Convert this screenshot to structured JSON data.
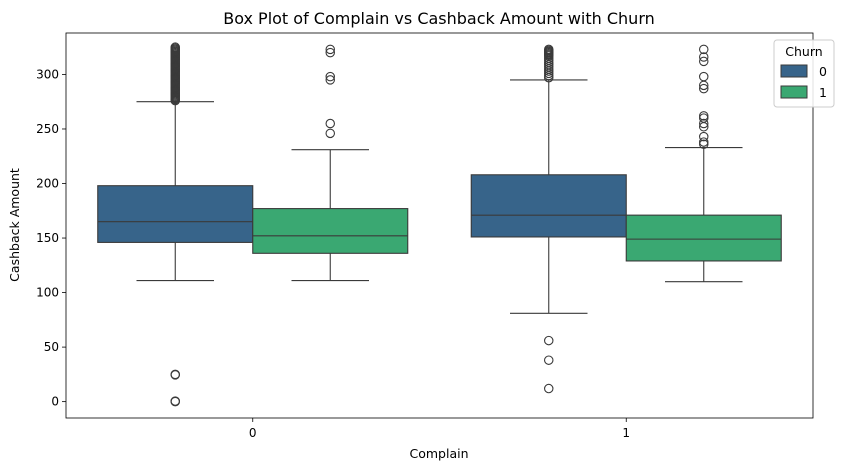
{
  "chart_data": {
    "type": "boxplot",
    "title": "Box Plot of Complain vs Cashback Amount with Churn",
    "xlabel": "Complain",
    "ylabel": "Cashback Amount",
    "categories": [
      "0",
      "1"
    ],
    "ylim": [
      -15,
      338
    ],
    "yticks": [
      0,
      50,
      100,
      150,
      200,
      250,
      300
    ],
    "grid": false,
    "legend": {
      "title": "Churn",
      "placement": "top-right"
    },
    "series": [
      {
        "name": "0",
        "color": "#37648a",
        "boxes": [
          {
            "category": "0",
            "q1": 146,
            "median": 165,
            "q3": 198,
            "whisker_low": 111,
            "whisker_high": 275,
            "outliers": [
              0,
              0.5,
              24.5,
              25,
              276,
              277,
              278,
              279,
              280,
              281,
              282,
              283,
              284,
              285,
              286,
              287,
              288,
              289,
              290,
              291,
              292,
              293,
              294,
              295,
              296,
              297,
              298,
              299,
              300,
              301,
              302,
              303,
              304,
              305,
              306,
              307,
              308,
              309,
              310,
              311,
              312,
              313,
              314,
              315,
              316,
              317,
              318,
              319,
              320,
              321,
              322,
              323,
              324,
              325
            ]
          },
          {
            "category": "1",
            "q1": 151,
            "median": 171,
            "q3": 208,
            "whisker_low": 81,
            "whisker_high": 295,
            "outliers": [
              12,
              38,
              56,
              297,
              299,
              301,
              303,
              305,
              307,
              309,
              311,
              313,
              315,
              317,
              318,
              319,
              320,
              321,
              322,
              323
            ]
          }
        ]
      },
      {
        "name": "1",
        "color": "#3aa872",
        "boxes": [
          {
            "category": "0",
            "q1": 136,
            "median": 152,
            "q3": 177,
            "whisker_low": 111,
            "whisker_high": 231,
            "outliers": [
              246,
              255,
              295,
              298,
              320,
              323
            ]
          },
          {
            "category": "1",
            "q1": 129,
            "median": 149,
            "q3": 171,
            "whisker_low": 110,
            "whisker_high": 233,
            "outliers": [
              236,
              238,
              243,
              252,
              255,
              260,
              262,
              287,
              290,
              298,
              312,
              316,
              323
            ]
          }
        ]
      }
    ]
  }
}
